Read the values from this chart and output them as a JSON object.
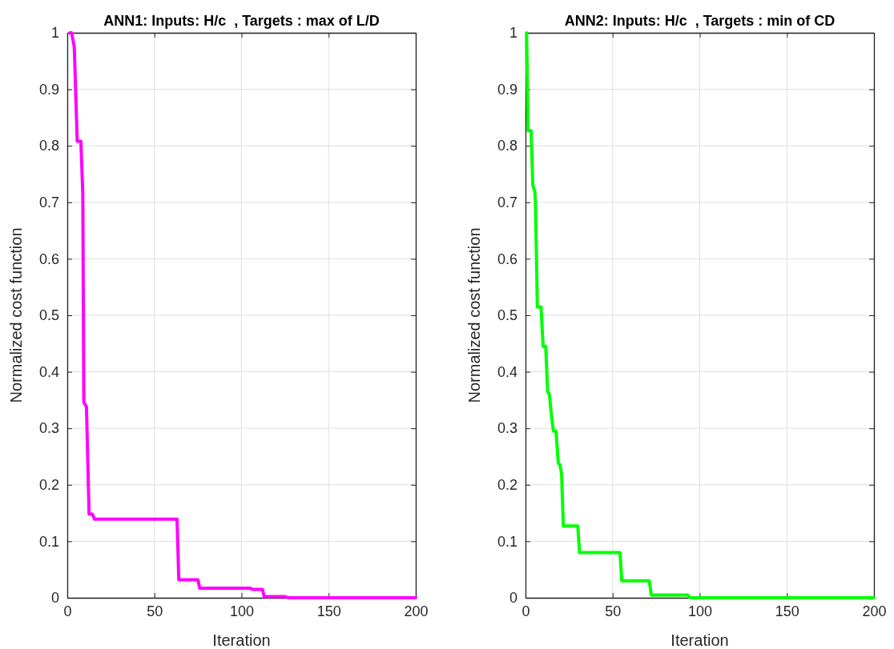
{
  "chart_data": [
    {
      "type": "line",
      "title": "ANN1: Inputs: H/c  , Targets : max of L/D",
      "xlabel": "Iteration",
      "ylabel": "Normalized cost function",
      "xlim": [
        0,
        200
      ],
      "xticks": [
        0,
        50,
        100,
        150,
        200
      ],
      "ylim": [
        0,
        1
      ],
      "yticks": [
        0,
        0.1,
        0.2,
        0.3,
        0.4,
        0.5,
        0.6,
        0.7,
        0.8,
        0.9,
        1
      ],
      "grid": true,
      "series": [
        {
          "color": "#ff00ff",
          "x": [
            1.5,
            2.5,
            4,
            5.7,
            7.8,
            8.9,
            9.5,
            11,
            12.5,
            14.4,
            15.7,
            63,
            64,
            70,
            75,
            76,
            105,
            106,
            112,
            113,
            125,
            127,
            200
          ],
          "values": [
            1,
            1,
            0.975,
            0.808,
            0.808,
            0.715,
            0.346,
            0.338,
            0.148,
            0.148,
            0.139,
            0.139,
            0.032,
            0.032,
            0.032,
            0.017,
            0.017,
            0.015,
            0.015,
            0.002,
            0.002,
            0,
            0
          ]
        }
      ]
    },
    {
      "type": "line",
      "title": "ANN2: Inputs: H/c  , Targets : min of CD",
      "xlabel": "Iteration",
      "ylabel": "Normalized cost function",
      "xlim": [
        0,
        200
      ],
      "xticks": [
        0,
        50,
        100,
        150,
        200
      ],
      "ylim": [
        0,
        1
      ],
      "yticks": [
        0,
        0.1,
        0.2,
        0.3,
        0.4,
        0.5,
        0.6,
        0.7,
        0.8,
        0.9,
        1
      ],
      "grid": true,
      "series": [
        {
          "color": "#00ff00",
          "x": [
            0.6,
            1.5,
            3.2,
            4.2,
            5.3,
            5.7,
            6.8,
            8.9,
            10.1,
            11.6,
            12.7,
            13.7,
            15,
            16,
            17.5,
            18.8,
            19.8,
            20.7,
            21.7,
            30,
            31,
            54.2,
            55.3,
            71,
            72.2,
            93,
            94.5,
            200
          ],
          "values": [
            1,
            0.827,
            0.827,
            0.73,
            0.72,
            0.702,
            0.515,
            0.515,
            0.445,
            0.445,
            0.365,
            0.36,
            0.32,
            0.295,
            0.295,
            0.239,
            0.235,
            0.22,
            0.127,
            0.127,
            0.08,
            0.08,
            0.03,
            0.03,
            0.005,
            0.005,
            0,
            0
          ]
        }
      ]
    }
  ]
}
